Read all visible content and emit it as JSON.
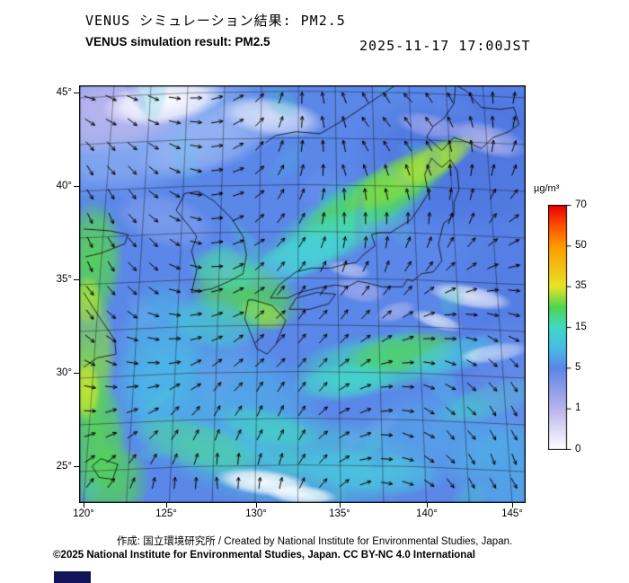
{
  "header": {
    "title_ja": "VENUS シミュレーション結果: PM2.5",
    "title_en": "VENUS simulation result: PM2.5",
    "timestamp": "2025-11-17 17:00JST"
  },
  "map": {
    "lat_labels": [
      "45°",
      "40°",
      "35°",
      "30°",
      "25°"
    ],
    "lon_labels": [
      "120°",
      "125°",
      "130°",
      "135°",
      "140°",
      "145°"
    ]
  },
  "colorbar": {
    "unit": "µg/m³",
    "tick_values": [
      70,
      50,
      35,
      15,
      5,
      1,
      0
    ],
    "stops": [
      {
        "v": 0,
        "color": "#ffffff"
      },
      {
        "v": 1,
        "color": "#b9b4ec"
      },
      {
        "v": 5,
        "color": "#5a87e6"
      },
      {
        "v": 10,
        "color": "#47bce8"
      },
      {
        "v": 15,
        "color": "#40d9c3"
      },
      {
        "v": 25,
        "color": "#4fd54f"
      },
      {
        "v": 35,
        "color": "#e8e428"
      },
      {
        "v": 50,
        "color": "#ff9a00"
      },
      {
        "v": 60,
        "color": "#ff4f00"
      },
      {
        "v": 70,
        "color": "#e60000"
      }
    ]
  },
  "footer": {
    "credit": "作成: 国立環境研究所 / Created by National Institute for Environmental Studies, Japan.",
    "license": "©2025 National Institute for Environmental Studies, Japan. CC BY-NC 4.0 International"
  },
  "chart_data": {
    "type": "heatmap",
    "title": "VENUS simulation result: PM2.5",
    "timestamp": "2025-11-17 17:00JST",
    "unit": "µg/m³",
    "colorbar_ticks": [
      70,
      50,
      35,
      15,
      5,
      1,
      0
    ],
    "lat_ticks": [
      45,
      40,
      35,
      30,
      25
    ],
    "lon_ticks": [
      120,
      125,
      130,
      135,
      140,
      145
    ],
    "legend_position": "right",
    "overlay": "wind-vectors"
  }
}
